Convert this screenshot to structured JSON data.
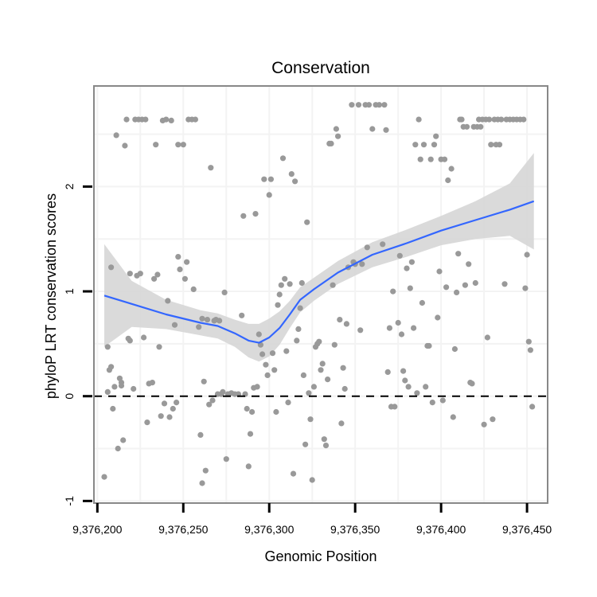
{
  "chart_data": {
    "type": "scatter",
    "title": "Conservation",
    "xlabel": "Genomic Position",
    "ylabel": "phyloP LRT conservation scores",
    "xlim": [
      9376198,
      9376462
    ],
    "ylim": [
      -1.02,
      2.96
    ],
    "x_ticks": [
      {
        "value": 9376200,
        "label": "9,376,200"
      },
      {
        "value": 9376250,
        "label": "9,376,250"
      },
      {
        "value": 9376300,
        "label": "9,376,300"
      },
      {
        "value": 9376350,
        "label": "9,376,350"
      },
      {
        "value": 9376400,
        "label": "9,376,400"
      },
      {
        "value": 9376450,
        "label": "9,376,450"
      }
    ],
    "y_ticks": [
      {
        "value": -1,
        "label": "-1"
      },
      {
        "value": 0,
        "label": "0"
      },
      {
        "value": 1,
        "label": "1"
      },
      {
        "value": 2,
        "label": "2"
      }
    ],
    "grid": true,
    "reference_line": {
      "y": 0,
      "style": "dashed"
    },
    "colors": {
      "points": "#999999",
      "smooth_line": "#3366ff",
      "ribbon": "#d4d4d4",
      "panel_border": "#888888",
      "grid": "#f3f3f3"
    },
    "points": [
      [
        9376204,
        -0.77
      ],
      [
        9376206,
        0.47
      ],
      [
        9376207,
        0.25
      ],
      [
        9376208,
        0.28
      ],
      [
        9376206,
        0.04
      ],
      [
        9376208,
        1.23
      ],
      [
        9376209,
        -0.12
      ],
      [
        9376210,
        0.09
      ],
      [
        9376211,
        2.49
      ],
      [
        9376212,
        -0.5
      ],
      [
        9376213,
        0.17
      ],
      [
        9376214,
        0.1
      ],
      [
        9376214,
        0.13
      ],
      [
        9376215,
        -0.42
      ],
      [
        9376216,
        2.39
      ],
      [
        9376217,
        2.64
      ],
      [
        9376218,
        0.55
      ],
      [
        9376219,
        1.17
      ],
      [
        9376219,
        0.53
      ],
      [
        9376221,
        0.07
      ],
      [
        9376222,
        2.64
      ],
      [
        9376223,
        1.15
      ],
      [
        9376224,
        2.64
      ],
      [
        9376225,
        1.17
      ],
      [
        9376226,
        2.64
      ],
      [
        9376227,
        0.56
      ],
      [
        9376228,
        2.64
      ],
      [
        9376229,
        -0.25
      ],
      [
        9376230,
        0.12
      ],
      [
        9376232,
        0.13
      ],
      [
        9376233,
        1.12
      ],
      [
        9376234,
        2.4
      ],
      [
        9376235,
        1.16
      ],
      [
        9376236,
        0.47
      ],
      [
        9376237,
        -0.19
      ],
      [
        9376238,
        2.63
      ],
      [
        9376239,
        -0.07
      ],
      [
        9376240,
        2.64
      ],
      [
        9376241,
        0.91
      ],
      [
        9376242,
        -0.2
      ],
      [
        9376243,
        2.63
      ],
      [
        9376244,
        -0.12
      ],
      [
        9376245,
        0.68
      ],
      [
        9376246,
        -0.06
      ],
      [
        9376247,
        1.33
      ],
      [
        9376247,
        2.4
      ],
      [
        9376248,
        1.21
      ],
      [
        9376250,
        2.4
      ],
      [
        9376251,
        1.12
      ],
      [
        9376252,
        1.28
      ],
      [
        9376253,
        2.64
      ],
      [
        9376255,
        2.64
      ],
      [
        9376256,
        1.02
      ],
      [
        9376257,
        2.64
      ],
      [
        9376259,
        0.66
      ],
      [
        9376260,
        -0.37
      ],
      [
        9376261,
        -0.83
      ],
      [
        9376261,
        0.74
      ],
      [
        9376262,
        0.14
      ],
      [
        9376263,
        -0.71
      ],
      [
        9376264,
        0.73
      ],
      [
        9376265,
        -0.08
      ],
      [
        9376266,
        2.18
      ],
      [
        9376267,
        -0.04
      ],
      [
        9376268,
        0.72
      ],
      [
        9376269,
        0.73
      ],
      [
        9376270,
        0.02
      ],
      [
        9376271,
        0.72
      ],
      [
        9376272,
        0.02
      ],
      [
        9376273,
        0.04
      ],
      [
        9376274,
        0.99
      ],
      [
        9376275,
        -0.6
      ],
      [
        9376276,
        0.02
      ],
      [
        9376278,
        0.03
      ],
      [
        9376280,
        0.02
      ],
      [
        9376282,
        0.02
      ],
      [
        9376284,
        0.77
      ],
      [
        9376285,
        1.72
      ],
      [
        9376286,
        0.02
      ],
      [
        9376287,
        -0.12
      ],
      [
        9376288,
        -0.67
      ],
      [
        9376289,
        -0.36
      ],
      [
        9376290,
        -0.15
      ],
      [
        9376291,
        0.08
      ],
      [
        9376292,
        1.74
      ],
      [
        9376293,
        0.09
      ],
      [
        9376294,
        0.59
      ],
      [
        9376295,
        0.49
      ],
      [
        9376296,
        0.4
      ],
      [
        9376297,
        2.07
      ],
      [
        9376298,
        0.3
      ],
      [
        9376299,
        0.2
      ],
      [
        9376300,
        1.92
      ],
      [
        9376301,
        2.07
      ],
      [
        9376302,
        0.41
      ],
      [
        9376303,
        0.25
      ],
      [
        9376304,
        -0.15
      ],
      [
        9376305,
        0.87
      ],
      [
        9376306,
        0.97
      ],
      [
        9376307,
        1.06
      ],
      [
        9376308,
        2.27
      ],
      [
        9376309,
        1.12
      ],
      [
        9376310,
        0.43
      ],
      [
        9376311,
        -0.06
      ],
      [
        9376312,
        1.07
      ],
      [
        9376313,
        2.12
      ],
      [
        9376314,
        -0.74
      ],
      [
        9376315,
        2.05
      ],
      [
        9376316,
        0.53
      ],
      [
        9376317,
        0.64
      ],
      [
        9376318,
        0.84
      ],
      [
        9376319,
        1.08
      ],
      [
        9376320,
        0.2
      ],
      [
        9376321,
        -0.46
      ],
      [
        9376322,
        1.66
      ],
      [
        9376323,
        0.03
      ],
      [
        9376324,
        -0.22
      ],
      [
        9376325,
        -0.8
      ],
      [
        9376326,
        0.09
      ],
      [
        9376327,
        0.47
      ],
      [
        9376328,
        0.5
      ],
      [
        9376329,
        0.52
      ],
      [
        9376330,
        0.25
      ],
      [
        9376331,
        0.31
      ],
      [
        9376332,
        -0.41
      ],
      [
        9376333,
        -0.47
      ],
      [
        9376334,
        0.16
      ],
      [
        9376335,
        2.41
      ],
      [
        9376336,
        2.41
      ],
      [
        9376337,
        1.06
      ],
      [
        9376338,
        0.49
      ],
      [
        9376339,
        2.55
      ],
      [
        9376340,
        2.48
      ],
      [
        9376341,
        0.73
      ],
      [
        9376342,
        -0.26
      ],
      [
        9376343,
        0.27
      ],
      [
        9376344,
        0.07
      ],
      [
        9376345,
        0.69
      ],
      [
        9376346,
        1.23
      ],
      [
        9376348,
        2.78
      ],
      [
        9376349,
        1.28
      ],
      [
        9376350,
        1.26
      ],
      [
        9376352,
        2.78
      ],
      [
        9376353,
        0.63
      ],
      [
        9376354,
        1.26
      ],
      [
        9376356,
        2.78
      ],
      [
        9376357,
        1.42
      ],
      [
        9376358,
        2.78
      ],
      [
        9376360,
        2.55
      ],
      [
        9376362,
        2.78
      ],
      [
        9376364,
        2.78
      ],
      [
        9376366,
        1.45
      ],
      [
        9376367,
        2.78
      ],
      [
        9376368,
        2.54
      ],
      [
        9376369,
        0.23
      ],
      [
        9376370,
        0.65
      ],
      [
        9376371,
        -0.1
      ],
      [
        9376372,
        1.0
      ],
      [
        9376373,
        -0.1
      ],
      [
        9376375,
        0.7
      ],
      [
        9376376,
        1.34
      ],
      [
        9376377,
        0.59
      ],
      [
        9376378,
        0.24
      ],
      [
        9376379,
        0.15
      ],
      [
        9376380,
        1.22
      ],
      [
        9376381,
        0.09
      ],
      [
        9376382,
        1.03
      ],
      [
        9376383,
        1.28
      ],
      [
        9376384,
        0.65
      ],
      [
        9376385,
        2.4
      ],
      [
        9376386,
        0.03
      ],
      [
        9376387,
        2.64
      ],
      [
        9376388,
        2.26
      ],
      [
        9376389,
        0.89
      ],
      [
        9376390,
        2.4
      ],
      [
        9376391,
        0.09
      ],
      [
        9376392,
        0.48
      ],
      [
        9376393,
        0.48
      ],
      [
        9376394,
        2.26
      ],
      [
        9376395,
        -0.06
      ],
      [
        9376396,
        2.4
      ],
      [
        9376397,
        2.48
      ],
      [
        9376398,
        0.75
      ],
      [
        9376399,
        1.19
      ],
      [
        9376400,
        2.26
      ],
      [
        9376401,
        -0.04
      ],
      [
        9376402,
        2.26
      ],
      [
        9376403,
        1.04
      ],
      [
        9376404,
        2.06
      ],
      [
        9376406,
        2.17
      ],
      [
        9376407,
        -0.2
      ],
      [
        9376408,
        0.45
      ],
      [
        9376409,
        0.99
      ],
      [
        9376410,
        1.36
      ],
      [
        9376411,
        2.64
      ],
      [
        9376412,
        2.64
      ],
      [
        9376413,
        2.57
      ],
      [
        9376414,
        1.06
      ],
      [
        9376415,
        2.57
      ],
      [
        9376416,
        1.26
      ],
      [
        9376417,
        0.13
      ],
      [
        9376418,
        0.12
      ],
      [
        9376419,
        2.57
      ],
      [
        9376420,
        1.08
      ],
      [
        9376421,
        2.57
      ],
      [
        9376422,
        2.64
      ],
      [
        9376423,
        2.57
      ],
      [
        9376424,
        2.64
      ],
      [
        9376425,
        -0.27
      ],
      [
        9376426,
        2.64
      ],
      [
        9376427,
        0.56
      ],
      [
        9376428,
        2.64
      ],
      [
        9376429,
        2.4
      ],
      [
        9376430,
        -0.22
      ],
      [
        9376431,
        2.64
      ],
      [
        9376432,
        2.4
      ],
      [
        9376433,
        2.64
      ],
      [
        9376434,
        2.4
      ],
      [
        9376435,
        2.64
      ],
      [
        9376437,
        1.07
      ],
      [
        9376438,
        2.64
      ],
      [
        9376440,
        2.64
      ],
      [
        9376442,
        2.64
      ],
      [
        9376444,
        2.64
      ],
      [
        9376446,
        2.64
      ],
      [
        9376448,
        2.64
      ],
      [
        9376449,
        1.03
      ],
      [
        9376450,
        1.35
      ],
      [
        9376451,
        0.52
      ],
      [
        9376452,
        0.44
      ],
      [
        9376453,
        -0.1
      ]
    ],
    "smooth": {
      "method": "loess",
      "x": [
        9376204,
        9376220,
        9376240,
        9376260,
        9376270,
        9376280,
        9376288,
        9376294,
        9376300,
        9376306,
        9376312,
        9376318,
        9376326,
        9376340,
        9376360,
        9376380,
        9376400,
        9376420,
        9376440,
        9376454
      ],
      "y": [
        0.96,
        0.88,
        0.78,
        0.7,
        0.67,
        0.6,
        0.53,
        0.51,
        0.56,
        0.65,
        0.78,
        0.92,
        1.02,
        1.18,
        1.35,
        1.46,
        1.58,
        1.68,
        1.78,
        1.86
      ],
      "lower": [
        0.47,
        0.66,
        0.64,
        0.58,
        0.55,
        0.47,
        0.37,
        0.33,
        0.38,
        0.49,
        0.65,
        0.8,
        0.91,
        1.07,
        1.23,
        1.33,
        1.44,
        1.5,
        1.53,
        1.4
      ],
      "upper": [
        1.45,
        1.1,
        0.92,
        0.82,
        0.79,
        0.73,
        0.69,
        0.69,
        0.74,
        0.81,
        0.91,
        1.04,
        1.13,
        1.29,
        1.47,
        1.59,
        1.72,
        1.86,
        2.03,
        2.32
      ]
    }
  }
}
